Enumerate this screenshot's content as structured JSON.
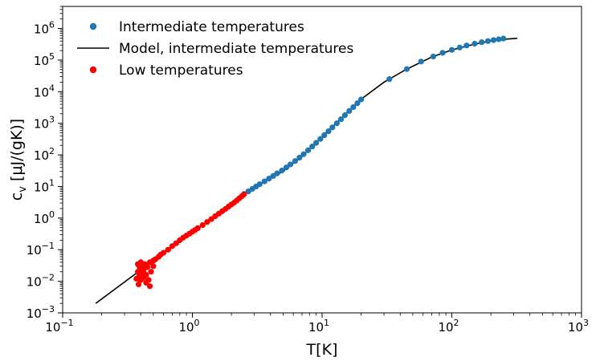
{
  "chart_data": {
    "type": "scatter",
    "xscale": "log",
    "yscale": "log",
    "xlim": [
      0.1,
      1000
    ],
    "ylim": [
      0.001,
      5000000
    ],
    "xlabel": "T[K]",
    "ylabel": "c_v [μJ/(gK)]",
    "ylabel_base": "c",
    "ylabel_sub": "v",
    "ylabel_rest": " [μJ/(gK)]",
    "xticks": [
      {
        "value": 0.1,
        "base": "10",
        "exp": "−1"
      },
      {
        "value": 1,
        "base": "10",
        "exp": "0"
      },
      {
        "value": 10,
        "base": "10",
        "exp": "1"
      },
      {
        "value": 100,
        "base": "10",
        "exp": "2"
      },
      {
        "value": 1000,
        "base": "10",
        "exp": "3"
      }
    ],
    "yticks": [
      {
        "value": 0.001,
        "base": "10",
        "exp": "−3"
      },
      {
        "value": 0.01,
        "base": "10",
        "exp": "−2"
      },
      {
        "value": 0.1,
        "base": "10",
        "exp": "−1"
      },
      {
        "value": 1,
        "base": "10",
        "exp": "0"
      },
      {
        "value": 10,
        "base": "10",
        "exp": "1"
      },
      {
        "value": 100,
        "base": "10",
        "exp": "2"
      },
      {
        "value": 1000,
        "base": "10",
        "exp": "3"
      },
      {
        "value": 10000,
        "base": "10",
        "exp": "4"
      },
      {
        "value": 100000,
        "base": "10",
        "exp": "5"
      },
      {
        "value": 1000000,
        "base": "10",
        "exp": "6"
      }
    ],
    "legend_position": "top-left",
    "series": [
      {
        "name": "Intermediate temperatures",
        "kind": "scatter",
        "color": "#1f77b4",
        "points": [
          [
            2.5,
            5.8
          ],
          [
            2.7,
            7.0
          ],
          [
            2.9,
            8.4
          ],
          [
            3.1,
            10.0
          ],
          [
            3.3,
            11.8
          ],
          [
            3.6,
            14.5
          ],
          [
            3.9,
            17.8
          ],
          [
            4.2,
            21.5
          ],
          [
            4.5,
            26.0
          ],
          [
            4.9,
            32.0
          ],
          [
            5.3,
            40.0
          ],
          [
            5.7,
            50.0
          ],
          [
            6.2,
            64.0
          ],
          [
            6.7,
            82.0
          ],
          [
            7.2,
            105
          ],
          [
            7.8,
            140
          ],
          [
            8.4,
            185
          ],
          [
            9.0,
            240
          ],
          [
            9.7,
            320
          ],
          [
            10.4,
            420
          ],
          [
            11.2,
            560
          ],
          [
            12.0,
            740
          ],
          [
            13.0,
            1000
          ],
          [
            14.0,
            1350
          ],
          [
            15.0,
            1800
          ],
          [
            16.2,
            2450
          ],
          [
            17.4,
            3250
          ],
          [
            18.7,
            4300
          ],
          [
            20.0,
            5700
          ],
          [
            33,
            25000
          ],
          [
            45,
            52000
          ],
          [
            58,
            90000
          ],
          [
            72,
            130000
          ],
          [
            85,
            170000
          ],
          [
            100,
            210000
          ],
          [
            115,
            250000
          ],
          [
            130,
            290000
          ],
          [
            150,
            330000
          ],
          [
            170,
            370000
          ],
          [
            190,
            400000
          ],
          [
            210,
            430000
          ],
          [
            230,
            455000
          ],
          [
            250,
            480000
          ]
        ]
      },
      {
        "name": "Model, intermediate temperatures",
        "kind": "line",
        "color": "#000000",
        "points": [
          [
            0.18,
            0.002
          ],
          [
            0.3,
            0.0095
          ],
          [
            0.5,
            0.045
          ],
          [
            0.8,
            0.18
          ],
          [
            1.2,
            0.6
          ],
          [
            1.8,
            2.05
          ],
          [
            2.5,
            5.6
          ],
          [
            3.5,
            13.5
          ],
          [
            5,
            30
          ],
          [
            7,
            90
          ],
          [
            10,
            380
          ],
          [
            14,
            1400
          ],
          [
            20,
            5800
          ],
          [
            30,
            20000
          ],
          [
            45,
            52000
          ],
          [
            70,
            125000
          ],
          [
            100,
            210000
          ],
          [
            150,
            320000
          ],
          [
            200,
            400000
          ],
          [
            260,
            460000
          ],
          [
            320,
            490000
          ]
        ]
      },
      {
        "name": "Low temperatures",
        "kind": "scatter",
        "color": "#ff0000",
        "points": [
          [
            0.37,
            0.012
          ],
          [
            0.38,
            0.035
          ],
          [
            0.38,
            0.02
          ],
          [
            0.385,
            0.008
          ],
          [
            0.39,
            0.03
          ],
          [
            0.39,
            0.015
          ],
          [
            0.395,
            0.025
          ],
          [
            0.4,
            0.011
          ],
          [
            0.4,
            0.04
          ],
          [
            0.405,
            0.018
          ],
          [
            0.41,
            0.03
          ],
          [
            0.42,
            0.013
          ],
          [
            0.42,
            0.022
          ],
          [
            0.43,
            0.035
          ],
          [
            0.44,
            0.009
          ],
          [
            0.44,
            0.016
          ],
          [
            0.45,
            0.028
          ],
          [
            0.46,
            0.011
          ],
          [
            0.47,
            0.007
          ],
          [
            0.47,
            0.04
          ],
          [
            0.48,
            0.02
          ],
          [
            0.5,
            0.045
          ],
          [
            0.5,
            0.03
          ],
          [
            0.52,
            0.05
          ],
          [
            0.55,
            0.06
          ],
          [
            0.57,
            0.07
          ],
          [
            0.6,
            0.08
          ],
          [
            0.65,
            0.1
          ],
          [
            0.7,
            0.13
          ],
          [
            0.75,
            0.16
          ],
          [
            0.8,
            0.2
          ],
          [
            0.85,
            0.24
          ],
          [
            0.9,
            0.28
          ],
          [
            0.95,
            0.32
          ],
          [
            1.0,
            0.37
          ],
          [
            1.05,
            0.42
          ],
          [
            1.1,
            0.48
          ],
          [
            1.2,
            0.6
          ],
          [
            1.3,
            0.75
          ],
          [
            1.4,
            0.93
          ],
          [
            1.5,
            1.15
          ],
          [
            1.6,
            1.38
          ],
          [
            1.7,
            1.65
          ],
          [
            1.8,
            1.95
          ],
          [
            1.9,
            2.3
          ],
          [
            2.0,
            2.7
          ],
          [
            2.1,
            3.1
          ],
          [
            2.2,
            3.6
          ],
          [
            2.3,
            4.2
          ],
          [
            2.4,
            4.9
          ],
          [
            2.5,
            5.6
          ]
        ]
      }
    ]
  }
}
